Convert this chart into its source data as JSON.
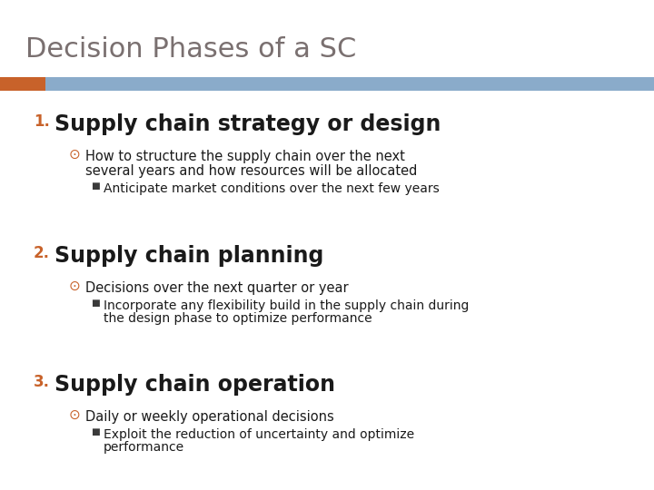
{
  "title": "Decision Phases of a SC",
  "title_color": "#7a7070",
  "title_fontsize": 22,
  "bg_color": "#ffffff",
  "bar_left_color": "#c8622a",
  "bar_right_color": "#8aabca",
  "number_color": "#c8622a",
  "heading_color": "#1a1a1a",
  "bullet_circle_color": "#c8622a",
  "bullet_square_color": "#3a3a3a",
  "body_color": "#1a1a1a",
  "items": [
    {
      "number": "1.",
      "heading": "Supply chain strategy or design",
      "sub_items": [
        {
          "text": "How to structure the supply chain over the next\nseveral years and how resources will be allocated",
          "sub_sub_items": [
            "Anticipate market conditions over the next few years"
          ]
        }
      ]
    },
    {
      "number": "2.",
      "heading": "Supply chain planning",
      "sub_items": [
        {
          "text": "Decisions over the next quarter or year",
          "sub_sub_items": [
            "Incorporate any flexibility build in the supply chain during\nthe design phase to optimize performance"
          ]
        }
      ]
    },
    {
      "number": "3.",
      "heading": "Supply chain operation",
      "sub_items": [
        {
          "text": "Daily or weekly operational decisions",
          "sub_sub_items": [
            "Exploit the reduction of uncertainty and optimize\nperformance"
          ]
        }
      ]
    }
  ]
}
